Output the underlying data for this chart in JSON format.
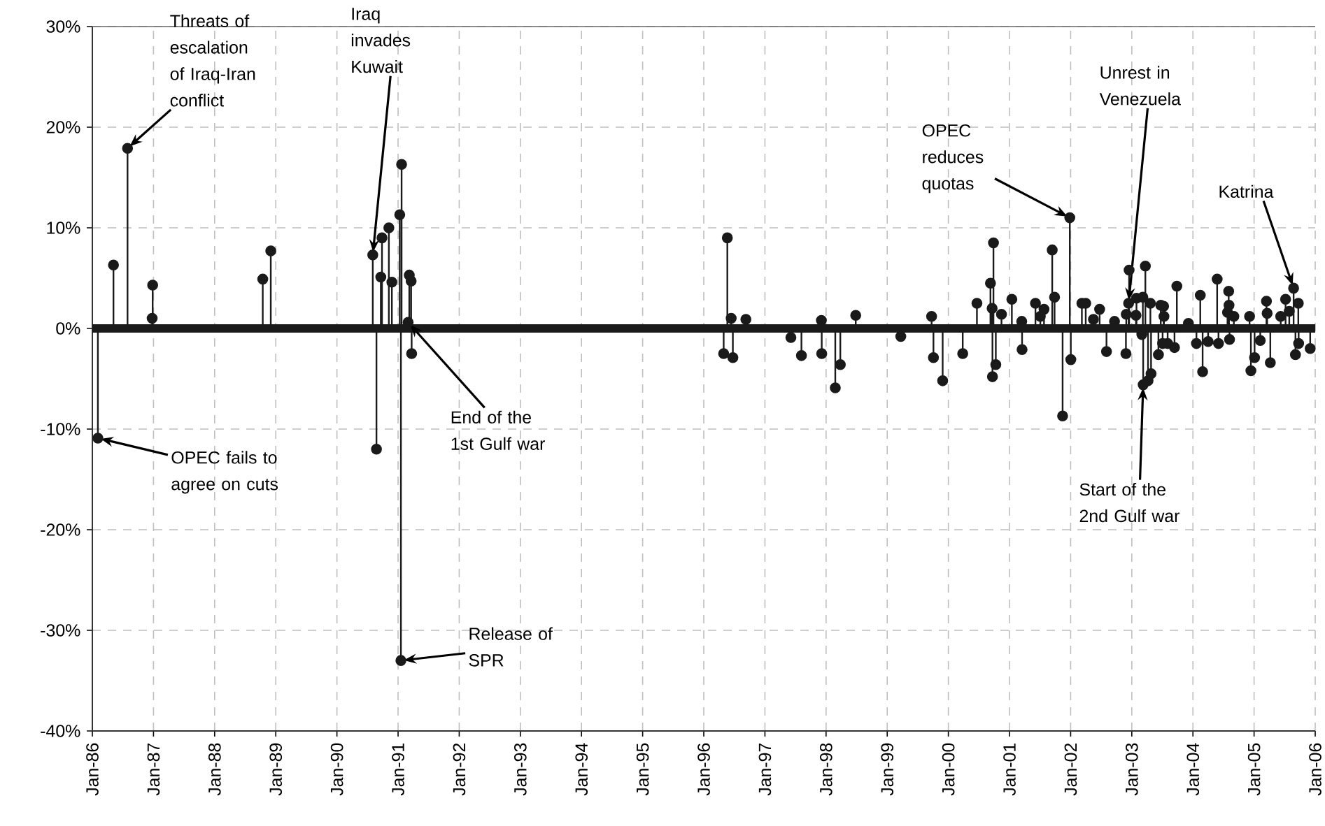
{
  "chart_data": {
    "type": "lollipop",
    "x": [
      "1986-02-03",
      "1986-05-07",
      "1986-07-30",
      "1986-12-24",
      "1986-12-27",
      "1988-10-15",
      "1988-12-02",
      "1990-08-03",
      "1990-08-25",
      "1990-09-20",
      "1990-09-27",
      "1990-11-07",
      "1990-11-25",
      "1991-01-11",
      "1991-01-18",
      "1991-01-22",
      "1991-03-02",
      "1991-03-09",
      "1991-03-20",
      "1991-03-23",
      "1996-04-29",
      "1996-05-21",
      "1996-06-13",
      "1996-06-23",
      "1996-09-09",
      "1997-06-05",
      "1997-08-07",
      "1997-12-04",
      "1997-12-06",
      "1998-02-25",
      "1998-03-27",
      "1998-06-27",
      "1999-03-23",
      "1999-09-23",
      "1999-10-04",
      "1999-11-28",
      "2000-03-27",
      "2000-06-20",
      "2000-09-09",
      "2000-09-19",
      "2000-09-21",
      "2000-09-27",
      "2000-10-11",
      "2000-11-14",
      "2001-01-15",
      "2001-03-15",
      "2001-03-17",
      "2001-06-05",
      "2001-07-04",
      "2001-07-26",
      "2001-09-13",
      "2001-09-27",
      "2001-11-14",
      "2001-12-27",
      "2002-01-02",
      "2002-03-09",
      "2002-04-01",
      "2002-05-17",
      "2002-06-23",
      "2002-08-03",
      "2002-09-20",
      "2002-11-27",
      "2002-11-29",
      "2002-12-13",
      "2002-12-16",
      "2003-01-26",
      "2003-01-29",
      "2003-03-02",
      "2003-03-08",
      "2003-03-10",
      "2003-03-23",
      "2003-04-08",
      "2003-04-22",
      "2003-04-26",
      "2003-06-09",
      "2003-06-23",
      "2003-07-04",
      "2003-07-10",
      "2003-07-12",
      "2003-08-03",
      "2003-09-13",
      "2003-09-27",
      "2003-12-05",
      "2004-01-22",
      "2004-02-14",
      "2004-02-28",
      "2004-04-01",
      "2004-05-25",
      "2004-06-02",
      "2004-07-26",
      "2004-08-02",
      "2004-08-04",
      "2004-08-07",
      "2004-09-02",
      "2004-12-05",
      "2004-12-13",
      "2005-01-04",
      "2005-02-07",
      "2005-03-16",
      "2005-03-20",
      "2005-04-08",
      "2005-06-09",
      "2005-07-08",
      "2005-07-30",
      "2005-08-25",
      "2005-09-05",
      "2005-09-22",
      "2005-09-24",
      "2005-12-02"
    ],
    "values": [
      -10.9,
      6.3,
      17.9,
      1.0,
      4.3,
      4.9,
      7.7,
      7.3,
      -12.0,
      5.1,
      9.0,
      10.0,
      4.6,
      11.3,
      -33.0,
      16.3,
      0.6,
      5.3,
      4.7,
      -2.5,
      -2.5,
      9.0,
      1.0,
      -2.9,
      0.9,
      -0.9,
      -2.7,
      0.8,
      -2.5,
      -5.9,
      -3.6,
      1.3,
      -0.8,
      1.2,
      -2.9,
      -5.2,
      -2.5,
      2.5,
      4.5,
      2.0,
      -4.8,
      8.5,
      -3.6,
      1.4,
      2.9,
      0.7,
      -2.1,
      2.5,
      1.2,
      1.9,
      7.8,
      3.1,
      -8.7,
      11.0,
      -3.1,
      2.5,
      2.5,
      0.9,
      1.9,
      -2.3,
      0.7,
      -2.5,
      1.4,
      2.5,
      5.8,
      1.3,
      3.0,
      -0.6,
      3.1,
      -5.6,
      6.2,
      -5.2,
      2.5,
      -4.5,
      -2.6,
      2.3,
      -1.5,
      2.2,
      1.2,
      -1.5,
      -1.9,
      4.2,
      0.5,
      -1.5,
      3.3,
      -4.3,
      -1.3,
      4.9,
      -1.5,
      1.6,
      3.7,
      2.3,
      -1.1,
      1.2,
      1.2,
      -4.2,
      -2.9,
      -1.2,
      2.7,
      1.5,
      -3.4,
      1.2,
      2.9,
      1.7,
      4.0,
      -2.6,
      2.5,
      -1.5,
      -2.0
    ],
    "color": "#1a1a1a",
    "marker": "circle",
    "grid": true,
    "xlim": [
      "1986-01-01",
      "2006-01-01"
    ],
    "xticks": [
      {
        "value": "1986-01-01",
        "label": "Jan-86"
      },
      {
        "value": "1987-01-01",
        "label": "Jan-87"
      },
      {
        "value": "1988-01-01",
        "label": "Jan-88"
      },
      {
        "value": "1989-01-01",
        "label": "Jan-89"
      },
      {
        "value": "1990-01-01",
        "label": "Jan-90"
      },
      {
        "value": "1991-01-01",
        "label": "Jan-91"
      },
      {
        "value": "1992-01-01",
        "label": "Jan-92"
      },
      {
        "value": "1993-01-01",
        "label": "Jan-93"
      },
      {
        "value": "1994-01-01",
        "label": "Jan-94"
      },
      {
        "value": "1995-01-01",
        "label": "Jan-95"
      },
      {
        "value": "1996-01-01",
        "label": "Jan-96"
      },
      {
        "value": "1997-01-01",
        "label": "Jan-97"
      },
      {
        "value": "1998-01-01",
        "label": "Jan-98"
      },
      {
        "value": "1999-01-01",
        "label": "Jan-99"
      },
      {
        "value": "2000-01-01",
        "label": "Jan-00"
      },
      {
        "value": "2001-01-01",
        "label": "Jan-01"
      },
      {
        "value": "2002-01-01",
        "label": "Jan-02"
      },
      {
        "value": "2003-01-01",
        "label": "Jan-03"
      },
      {
        "value": "2004-01-01",
        "label": "Jan-04"
      },
      {
        "value": "2005-01-01",
        "label": "Jan-05"
      },
      {
        "value": "2006-01-01",
        "label": "Jan-06"
      }
    ],
    "ylim": [
      -40,
      30
    ],
    "yticks": [
      {
        "value": -40,
        "label": "-40%"
      },
      {
        "value": -30,
        "label": "-30%"
      },
      {
        "value": -20,
        "label": "-20%"
      },
      {
        "value": -10,
        "label": "-10%"
      },
      {
        "value": 0,
        "label": "0%"
      },
      {
        "value": 10,
        "label": "10%"
      },
      {
        "value": 20,
        "label": "20%"
      },
      {
        "value": 30,
        "label": "30%"
      }
    ],
    "ref_lines": [
      {
        "axis": "y",
        "value": 0,
        "color": "#1a1a1a"
      }
    ],
    "annotations": [
      {
        "text": "Threats of escalation of Iraq-Iran conflict",
        "x": "1986-07-30",
        "y": 17.9
      },
      {
        "text": "OPEC fails to agree on cuts",
        "x": "1986-02-03",
        "y": -10.9
      },
      {
        "text": "Iraq invades Kuwait",
        "x": "1990-08-03",
        "y": 7.3
      },
      {
        "text": "Release of SPR",
        "x": "1991-01-18",
        "y": -33.0
      },
      {
        "text": "End of the 1st Gulf war",
        "x": "1991-03-02",
        "y": 0.6
      },
      {
        "text": "OPEC reduces quotas",
        "x": "2001-12-27",
        "y": 11.0
      },
      {
        "text": "Unrest in Venezuela",
        "x": "2002-12-13",
        "y": 2.5
      },
      {
        "text": "Start of the 2nd Gulf war",
        "x": "2003-03-10",
        "y": -5.6
      },
      {
        "text": "Katrina",
        "x": "2005-08-25",
        "y": 4.0
      }
    ]
  }
}
